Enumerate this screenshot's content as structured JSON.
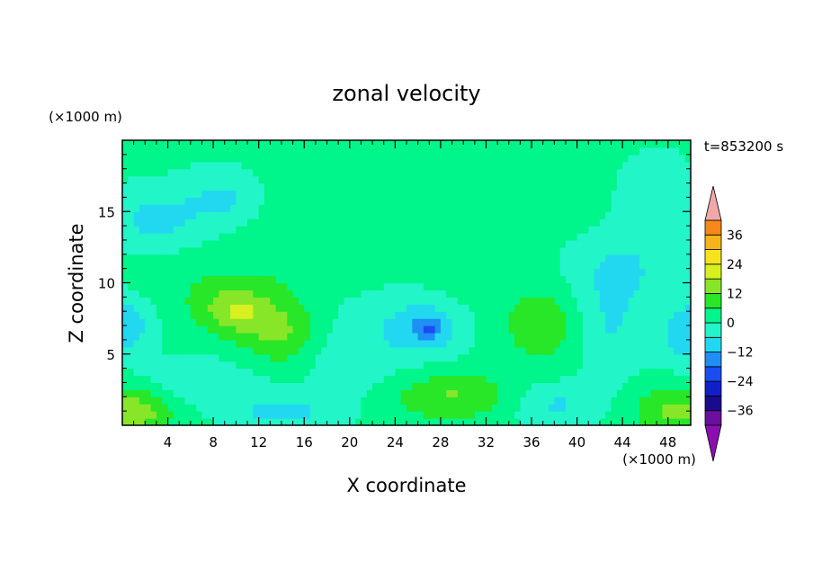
{
  "chart_data": {
    "type": "heatmap",
    "title": "zonal velocity",
    "time_label": "t=853200 s",
    "xlabel": "X coordinate",
    "ylabel": "Z coordinate",
    "x_unit": "(×1000 m)",
    "y_unit": "(×1000 m)",
    "xlim": [
      0,
      50
    ],
    "ylim": [
      0,
      20
    ],
    "x_ticks": [
      4,
      8,
      12,
      16,
      20,
      24,
      28,
      32,
      36,
      40,
      44,
      48
    ],
    "y_ticks": [
      5,
      10,
      15
    ],
    "colorbar": {
      "levels": [
        -42,
        -36,
        -30,
        -24,
        -18,
        -12,
        -6,
        0,
        6,
        12,
        18,
        24,
        30,
        36,
        42
      ],
      "tick_labels": [
        "36",
        "24",
        "12",
        "0",
        "−12",
        "−24",
        "−36"
      ],
      "tick_values": [
        36,
        24,
        12,
        0,
        -12,
        -24,
        -36
      ],
      "colors": [
        "#6a0f9e",
        "#1a0a8c",
        "#1020c8",
        "#1a4cf0",
        "#1f8ef5",
        "#22d8f0",
        "#22f5c8",
        "#00f58a",
        "#28e628",
        "#88e628",
        "#d8f020",
        "#f5e41c",
        "#f5b41a",
        "#f58818",
        "#f05018",
        "#e82818"
      ],
      "extend_low_color": "#8a0fae",
      "extend_high_color": "#f0a8a8"
    },
    "field_note": "Contoured zonal velocity field; values roughly -18 to +18 over the domain, with weak negative (cyan) regions near z=15 and z=6-7 and positive (yellow-green) cores near x=8-12, z=6-9 and near the bottom boundary.",
    "blobs": [
      {
        "x": 0.0,
        "z": 7.0,
        "sx": 2.5,
        "sz": 2.0,
        "v": -13
      },
      {
        "x": 3.0,
        "z": 14.5,
        "sx": 4.0,
        "sz": 2.0,
        "v": -9
      },
      {
        "x": 9.0,
        "z": 16.0,
        "sx": 3.5,
        "sz": 1.8,
        "v": -8
      },
      {
        "x": 7.0,
        "z": 3.0,
        "sx": 5.0,
        "sz": 1.5,
        "v": -7
      },
      {
        "x": 14.0,
        "z": 1.0,
        "sx": 4.5,
        "sz": 1.2,
        "v": -9
      },
      {
        "x": 20.0,
        "z": 5.0,
        "sx": 4.0,
        "sz": 3.0,
        "v": -6
      },
      {
        "x": 27.0,
        "z": 7.0,
        "sx": 4.0,
        "sz": 2.2,
        "v": -14
      },
      {
        "x": 27.0,
        "z": 6.8,
        "sx": 1.3,
        "sz": 0.7,
        "v": -8
      },
      {
        "x": 38.0,
        "z": 1.5,
        "sx": 4.0,
        "sz": 1.5,
        "v": -8
      },
      {
        "x": 43.0,
        "z": 7.0,
        "sx": 3.0,
        "sz": 3.5,
        "v": -7
      },
      {
        "x": 50.0,
        "z": 6.5,
        "sx": 2.5,
        "sz": 2.2,
        "v": -13
      },
      {
        "x": 44.0,
        "z": 11.0,
        "sx": 4.5,
        "sz": 2.5,
        "v": -7
      },
      {
        "x": 47.0,
        "z": 16.0,
        "sx": 3.0,
        "sz": 3.0,
        "v": -5
      },
      {
        "x": 10.0,
        "z": 8.0,
        "sx": 3.0,
        "sz": 1.6,
        "v": 13
      },
      {
        "x": 14.0,
        "z": 6.5,
        "sx": 3.5,
        "sz": 2.2,
        "v": 11
      },
      {
        "x": 1.0,
        "z": 1.0,
        "sx": 3.5,
        "sz": 1.7,
        "v": 15
      },
      {
        "x": 29.0,
        "z": 2.0,
        "sx": 5.5,
        "sz": 1.6,
        "v": 11
      },
      {
        "x": 37.0,
        "z": 7.0,
        "sx": 3.0,
        "sz": 2.5,
        "v": 10
      },
      {
        "x": 49.0,
        "z": 1.0,
        "sx": 4.0,
        "sz": 1.7,
        "v": 13
      },
      {
        "x": 8.5,
        "z": 9.5,
        "sx": 6.0,
        "sz": 2.5,
        "v": 5
      },
      {
        "x": 30.0,
        "z": 8.0,
        "sx": 4.5,
        "sz": 4.0,
        "v": 4
      },
      {
        "x": 14.5,
        "z": 14.0,
        "sx": 3.5,
        "sz": 5.0,
        "v": 3
      },
      {
        "x": 37.0,
        "z": 17.0,
        "sx": 3.5,
        "sz": 3.5,
        "v": 3
      },
      {
        "x": 32.0,
        "z": 19.5,
        "sx": 8.0,
        "sz": 1.2,
        "v": 2
      }
    ]
  }
}
